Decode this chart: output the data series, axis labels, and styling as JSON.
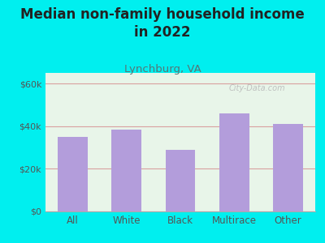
{
  "categories": [
    "All",
    "White",
    "Black",
    "Multirace",
    "Other"
  ],
  "values": [
    35000,
    38500,
    29000,
    46000,
    41000
  ],
  "bar_color": "#b39ddb",
  "title_line1": "Median non-family household income",
  "title_line2": "in 2022",
  "subtitle": "Lynchburg, VA",
  "title_fontsize": 12,
  "subtitle_fontsize": 9.5,
  "background_outer": "#00efef",
  "background_inner_top": "#e8f5e9",
  "background_inner_bottom": "#f5fff5",
  "ylabel_ticks": [
    0,
    20000,
    40000,
    60000
  ],
  "ylabel_labels": [
    "$0",
    "$20k",
    "$40k",
    "$60k"
  ],
  "ylim": [
    0,
    65000
  ],
  "watermark": "City-Data.com",
  "xlabel_fontsize": 8.5,
  "tick_fontsize": 8,
  "tick_color": "#555555",
  "title_color": "#222222",
  "subtitle_color": "#557777",
  "grid_color": "#d8a0a0",
  "spine_color": "#aaaaaa"
}
